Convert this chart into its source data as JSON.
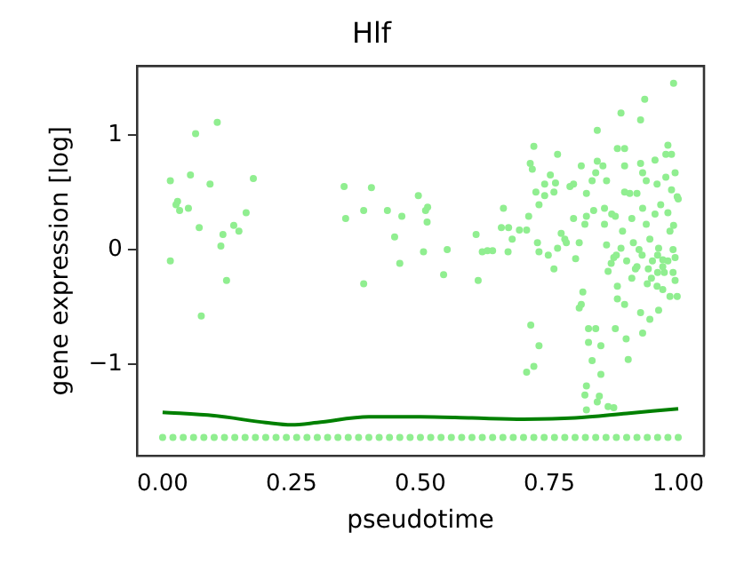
{
  "chart_data": {
    "type": "scatter",
    "title": "Hlf",
    "xlabel": "pseudotime",
    "ylabel": "gene expression [log]",
    "xlim": [
      -0.05,
      1.05
    ],
    "ylim": [
      -1.8,
      1.6
    ],
    "xticks": [
      {
        "value": 0,
        "label": "0.00"
      },
      {
        "value": 0.25,
        "label": "0.25"
      },
      {
        "value": 0.5,
        "label": "0.50"
      },
      {
        "value": 0.75,
        "label": "0.75"
      },
      {
        "value": 1,
        "label": "1.00"
      }
    ],
    "yticks": [
      {
        "value": -1,
        "label": "−1"
      },
      0,
      1
    ],
    "grid": false,
    "legend": false,
    "marker": "circle",
    "series": [
      {
        "type": "scatter",
        "color": "#90ee90",
        "x": [
          0.015,
          0.015,
          0.026,
          0.029,
          0.033,
          0.05,
          0.054,
          0.064,
          0.071,
          0.075,
          0.092,
          0.106,
          0.113,
          0.117,
          0.124,
          0.138,
          0.148,
          0.162,
          0.176,
          0.352,
          0.355,
          0.39,
          0.39,
          0.405,
          0.436,
          0.45,
          0.46,
          0.464,
          0.496,
          0.506,
          0.51,
          0.513,
          0.514,
          0.545,
          0.552,
          0.608,
          0.612,
          0.62,
          0.63,
          0.64,
          0.657,
          0.661,
          0.671,
          0.67,
          0.678,
          0.692,
          0.706,
          0.713,
          0.717,
          0.72,
          0.71,
          0.714,
          0.73,
          0.72,
          0.706,
          0.724,
          0.73,
          0.727,
          0.73,
          0.741,
          0.741,
          0.752,
          0.759,
          0.762,
          0.766,
          0.748,
          0.759,
          0.766,
          0.773,
          0.78,
          0.783,
          0.79,
          0.797,
          0.797,
          0.808,
          0.801,
          0.812,
          0.822,
          0.819,
          0.822,
          0.833,
          0.836,
          0.815,
          0.808,
          0.812,
          0.826,
          0.826,
          0.822,
          0.819,
          0.822,
          0.84,
          0.833,
          0.843,
          0.843,
          0.84,
          0.85,
          0.85,
          0.847,
          0.843,
          0.854,
          0.861,
          0.857,
          0.857,
          0.861,
          0.864,
          0.864,
          0.875,
          0.871,
          0.878,
          0.875,
          0.882,
          0.882,
          0.878,
          0.889,
          0.882,
          0.896,
          0.896,
          0.896,
          0.892,
          0.889,
          0.896,
          0.903,
          0.899,
          0.906,
          0.91,
          0.913,
          0.917,
          0.92,
          0.924,
          0.927,
          0.935,
          0.927,
          0.931,
          0.931,
          0.931,
          0.927,
          0.938,
          0.938,
          0.942,
          0.945,
          0.945,
          0.948,
          0.955,
          0.959,
          0.955,
          0.962,
          0.962,
          0.959,
          0.966,
          0.97,
          0.973,
          0.976,
          0.98,
          0.976,
          0.98,
          0.984,
          0.984,
          0.987,
          0.987,
          0.991,
          0.991,
          0.994,
          0.994,
          0.998,
          0.998,
          1.0,
          0.994,
          0.88,
          0.9,
          0.92,
          0.93,
          0.95,
          0.96,
          0.97,
          0.98,
          0.99,
          0.87,
          0.91,
          0.94,
          0.96,
          0.99,
          0.97
        ],
        "values": [
          0.6,
          -0.1,
          0.39,
          0.42,
          0.34,
          0.36,
          0.65,
          1.01,
          0.19,
          -0.58,
          0.57,
          1.11,
          0.03,
          0.13,
          -0.27,
          0.21,
          0.16,
          0.32,
          0.62,
          0.55,
          0.27,
          0.34,
          -0.3,
          0.54,
          0.34,
          0.11,
          -0.12,
          0.29,
          0.47,
          -0.02,
          0.34,
          0.24,
          0.37,
          -0.22,
          0.0,
          0.13,
          -0.27,
          -0.02,
          -0.01,
          -0.01,
          0.19,
          0.36,
          0.19,
          -0.02,
          0.09,
          0.17,
          0.17,
          0.75,
          0.7,
          0.9,
          0.29,
          -0.66,
          -0.84,
          -1.02,
          -1.07,
          0.5,
          0.39,
          0.06,
          -0.02,
          0.57,
          0.47,
          0.65,
          0.5,
          0.58,
          0.83,
          -0.05,
          -0.17,
          0.01,
          0.14,
          0.09,
          0.06,
          0.55,
          0.57,
          0.27,
          0.06,
          -0.08,
          0.73,
          0.49,
          0.22,
          0.29,
          0.6,
          0.34,
          -0.37,
          -0.51,
          -0.48,
          -0.69,
          -0.81,
          -1.19,
          -1.27,
          -1.4,
          -0.69,
          -0.97,
          1.04,
          0.77,
          0.67,
          -0.84,
          -1.09,
          -1.28,
          -1.33,
          0.73,
          0.6,
          0.36,
          0.22,
          0.04,
          -0.19,
          -1.37,
          -1.38,
          0.31,
          0.29,
          -0.07,
          -0.32,
          -0.43,
          -0.69,
          1.19,
          0.88,
          0.88,
          0.73,
          0.5,
          0.16,
          0.01,
          -0.48,
          -0.96,
          -0.78,
          0.49,
          0.27,
          0.06,
          -0.17,
          0.49,
          0.0,
          1.13,
          1.31,
          0.75,
          0.67,
          0.36,
          -0.73,
          -0.55,
          0.6,
          0.22,
          -0.17,
          0.09,
          -0.61,
          -0.25,
          0.78,
          0.57,
          0.31,
          0.01,
          -0.53,
          -0.32,
          0.39,
          -0.09,
          -0.2,
          0.83,
          0.91,
          0.63,
          0.32,
          0.16,
          -0.41,
          0.83,
          0.52,
          1.45,
          0.21,
          0.67,
          -0.07,
          0.46,
          -0.41,
          0.44,
          -0.27,
          -0.05,
          -0.1,
          -0.15,
          -0.05,
          -0.1,
          -0.2,
          -0.15,
          -0.1,
          -0.2,
          -0.12,
          -0.25,
          -0.3,
          -0.05,
          0.0,
          -0.35
        ]
      },
      {
        "type": "scatter",
        "color": "#90ee90",
        "x": [
          0,
          0.02,
          0.04,
          0.06,
          0.08,
          0.1,
          0.12,
          0.14,
          0.16,
          0.18,
          0.2,
          0.22,
          0.24,
          0.26,
          0.28,
          0.3,
          0.32,
          0.34,
          0.36,
          0.38,
          0.4,
          0.42,
          0.44,
          0.46,
          0.48,
          0.5,
          0.52,
          0.54,
          0.56,
          0.58,
          0.6,
          0.62,
          0.64,
          0.66,
          0.68,
          0.7,
          0.72,
          0.74,
          0.76,
          0.78,
          0.8,
          0.82,
          0.84,
          0.86,
          0.88,
          0.9,
          0.92,
          0.94,
          0.96,
          0.98,
          1
        ],
        "values": [
          -1.64,
          -1.64,
          -1.64,
          -1.64,
          -1.64,
          -1.64,
          -1.64,
          -1.64,
          -1.64,
          -1.64,
          -1.64,
          -1.64,
          -1.64,
          -1.64,
          -1.64,
          -1.64,
          -1.64,
          -1.64,
          -1.64,
          -1.64,
          -1.64,
          -1.64,
          -1.64,
          -1.64,
          -1.64,
          -1.64,
          -1.64,
          -1.64,
          -1.64,
          -1.64,
          -1.64,
          -1.64,
          -1.64,
          -1.64,
          -1.64,
          -1.64,
          -1.64,
          -1.64,
          -1.64,
          -1.64,
          -1.64,
          -1.64,
          -1.64,
          -1.64,
          -1.64,
          -1.64,
          -1.64,
          -1.64,
          -1.64,
          -1.64,
          -1.64
        ]
      },
      {
        "type": "line",
        "color": "#008000",
        "marker": "none",
        "x": [
          0,
          0.1,
          0.2,
          0.25,
          0.3,
          0.4,
          0.5,
          0.6,
          0.7,
          0.8,
          0.9,
          1
        ],
        "values": [
          -1.42,
          -1.45,
          -1.51,
          -1.53,
          -1.51,
          -1.46,
          -1.46,
          -1.47,
          -1.48,
          -1.47,
          -1.43,
          -1.39
        ]
      }
    ]
  }
}
